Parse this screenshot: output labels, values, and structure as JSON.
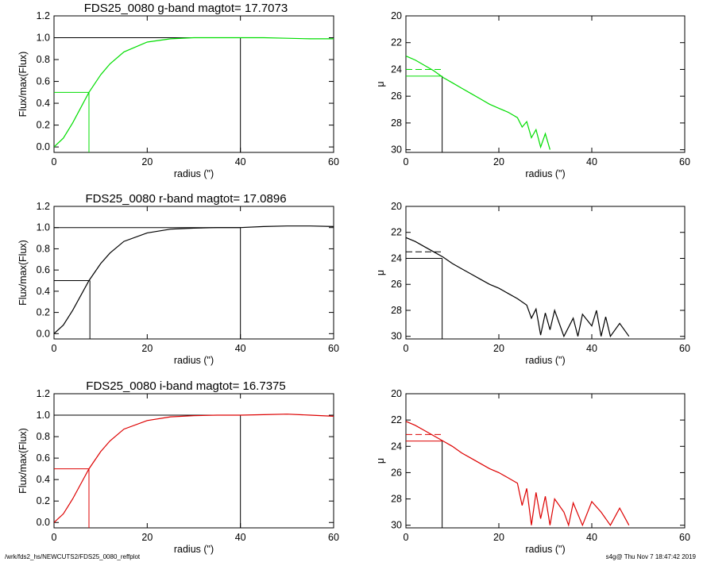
{
  "footer": {
    "left": "/wrk/fds2_hs/NEWCUTS2/FDS25_0080_reffplot",
    "right": "s4g@  Thu Nov  7 18:47:42 2019"
  },
  "colors": {
    "g": "#00dd00",
    "r": "#000000",
    "i": "#dd0000",
    "axes": "#000000"
  },
  "chart_data": [
    {
      "type": "line",
      "panel": "growth-curve",
      "band": "g",
      "title": "FDS25_0080 g-band  magtot=      17.7073",
      "xlabel": "radius (\")",
      "ylabel": "Flux/max(Flux)",
      "xlim": [
        0,
        60
      ],
      "ylim": [
        -0.05,
        1.2
      ],
      "xticks": [
        "0",
        "20",
        "40",
        "60"
      ],
      "yticks": [
        "0.0",
        "0.2",
        "0.4",
        "0.6",
        "0.8",
        "1.0",
        "1.2"
      ],
      "series": [
        {
          "color": "#00dd00",
          "x": [
            0,
            2,
            4,
            6,
            7.5,
            10,
            12,
            15,
            20,
            25,
            30,
            35,
            40,
            45,
            50,
            55,
            60
          ],
          "y": [
            0,
            0.08,
            0.22,
            0.38,
            0.5,
            0.66,
            0.76,
            0.87,
            0.96,
            0.99,
            1.0,
            1.0,
            1.0,
            1.0,
            0.995,
            0.99,
            0.99
          ]
        }
      ],
      "reference_lines": {
        "half_light_radius": 7.5,
        "half_light_flux": 0.5,
        "total_radius": 40,
        "total_flux": 1.0
      }
    },
    {
      "type": "line",
      "panel": "surface-brightness",
      "band": "g",
      "xlabel": "radius (\")",
      "ylabel": "μ",
      "xlim": [
        0,
        60
      ],
      "ylim": [
        30.2,
        20
      ],
      "y_inverted": true,
      "xticks": [
        "0",
        "20",
        "40",
        "60"
      ],
      "yticks": [
        "20",
        "22",
        "24",
        "26",
        "28",
        "30"
      ],
      "series": [
        {
          "color": "#00dd00",
          "x": [
            0,
            2,
            4,
            6,
            8,
            10,
            12,
            14,
            16,
            18,
            20,
            22,
            24,
            25,
            26,
            27,
            28,
            29,
            30,
            31
          ],
          "y": [
            23.0,
            23.3,
            23.7,
            24.1,
            24.6,
            25.0,
            25.4,
            25.8,
            26.2,
            26.6,
            26.9,
            27.2,
            27.6,
            28.3,
            27.9,
            29.1,
            28.5,
            29.8,
            28.8,
            30.0
          ]
        }
      ],
      "reference_lines": {
        "radius": 7.8,
        "mu_solid": 24.5,
        "mu_dashed": 24.0
      }
    },
    {
      "type": "line",
      "panel": "growth-curve",
      "band": "r",
      "title": "FDS25_0080 r-band  magtot=      17.0896",
      "xlabel": "radius (\")",
      "ylabel": "Flux/max(Flux)",
      "xlim": [
        0,
        60
      ],
      "ylim": [
        -0.05,
        1.2
      ],
      "xticks": [
        "0",
        "20",
        "40",
        "60"
      ],
      "yticks": [
        "0.0",
        "0.2",
        "0.4",
        "0.6",
        "0.8",
        "1.0",
        "1.2"
      ],
      "series": [
        {
          "color": "#000000",
          "x": [
            0,
            2,
            4,
            6,
            7.5,
            10,
            12,
            15,
            20,
            25,
            30,
            35,
            40,
            45,
            50,
            55,
            60
          ],
          "y": [
            0,
            0.08,
            0.22,
            0.38,
            0.5,
            0.66,
            0.76,
            0.87,
            0.95,
            0.985,
            0.995,
            1.0,
            1.0,
            1.01,
            1.015,
            1.015,
            1.01
          ]
        }
      ],
      "reference_lines": {
        "half_light_radius": 7.7,
        "half_light_flux": 0.5,
        "total_radius": 40,
        "total_flux": 1.0
      }
    },
    {
      "type": "line",
      "panel": "surface-brightness",
      "band": "r",
      "xlabel": "radius (\")",
      "ylabel": "μ",
      "xlim": [
        0,
        60
      ],
      "ylim": [
        30.2,
        20
      ],
      "y_inverted": true,
      "xticks": [
        "0",
        "20",
        "40",
        "60"
      ],
      "yticks": [
        "20",
        "22",
        "24",
        "26",
        "28",
        "30"
      ],
      "series": [
        {
          "color": "#000000",
          "x": [
            0,
            2,
            4,
            6,
            8,
            10,
            12,
            14,
            16,
            18,
            20,
            22,
            24,
            26,
            27,
            28,
            29,
            30,
            31,
            32,
            34,
            36,
            37,
            38,
            40,
            41,
            42,
            43,
            44,
            46,
            48
          ],
          "y": [
            22.4,
            22.7,
            23.1,
            23.5,
            23.9,
            24.4,
            24.8,
            25.2,
            25.6,
            26.0,
            26.3,
            26.7,
            27.1,
            27.6,
            28.6,
            27.9,
            29.9,
            28.2,
            29.5,
            28.0,
            30.0,
            28.6,
            30.0,
            28.3,
            29.2,
            28.0,
            30.0,
            28.5,
            30.0,
            29.0,
            30.0
          ]
        }
      ],
      "reference_lines": {
        "radius": 7.8,
        "mu_solid": 24.0,
        "mu_dashed": 23.5
      }
    },
    {
      "type": "line",
      "panel": "growth-curve",
      "band": "i",
      "title": "FDS25_0080 i-band  magtot=      16.7375",
      "xlabel": "radius (\")",
      "ylabel": "Flux/max(Flux)",
      "xlim": [
        0,
        60
      ],
      "ylim": [
        -0.05,
        1.2
      ],
      "xticks": [
        "0",
        "20",
        "40",
        "60"
      ],
      "yticks": [
        "0.0",
        "0.2",
        "0.4",
        "0.6",
        "0.8",
        "1.0",
        "1.2"
      ],
      "series": [
        {
          "color": "#dd0000",
          "x": [
            0,
            2,
            4,
            6,
            7.5,
            10,
            12,
            15,
            20,
            25,
            30,
            35,
            40,
            45,
            50,
            55,
            60
          ],
          "y": [
            0,
            0.08,
            0.22,
            0.38,
            0.5,
            0.66,
            0.76,
            0.87,
            0.95,
            0.985,
            0.995,
            1.0,
            1.0,
            1.005,
            1.01,
            1.0,
            0.99
          ]
        }
      ],
      "reference_lines": {
        "half_light_radius": 7.5,
        "half_light_flux": 0.5,
        "total_radius": 40,
        "total_flux": 1.0
      }
    },
    {
      "type": "line",
      "panel": "surface-brightness",
      "band": "i",
      "xlabel": "radius (\")",
      "ylabel": "μ",
      "xlim": [
        0,
        60
      ],
      "ylim": [
        30.2,
        20
      ],
      "y_inverted": true,
      "xticks": [
        "0",
        "20",
        "40",
        "60"
      ],
      "yticks": [
        "20",
        "22",
        "24",
        "26",
        "28",
        "30"
      ],
      "series": [
        {
          "color": "#dd0000",
          "x": [
            0,
            2,
            4,
            6,
            8,
            10,
            12,
            14,
            16,
            18,
            20,
            22,
            24,
            25,
            26,
            27,
            28,
            29,
            30,
            31,
            32,
            34,
            35,
            36,
            38,
            40,
            42,
            44,
            46,
            48
          ],
          "y": [
            22.1,
            22.4,
            22.8,
            23.2,
            23.6,
            24.0,
            24.5,
            24.9,
            25.3,
            25.7,
            26.0,
            26.4,
            26.8,
            28.5,
            27.2,
            30.0,
            27.5,
            29.5,
            27.8,
            30.0,
            28.0,
            29.0,
            30.0,
            28.3,
            30.0,
            28.2,
            29.0,
            30.0,
            28.7,
            30.0
          ]
        }
      ],
      "reference_lines": {
        "radius": 7.8,
        "mu_solid": 23.6,
        "mu_dashed": 23.1
      }
    }
  ]
}
